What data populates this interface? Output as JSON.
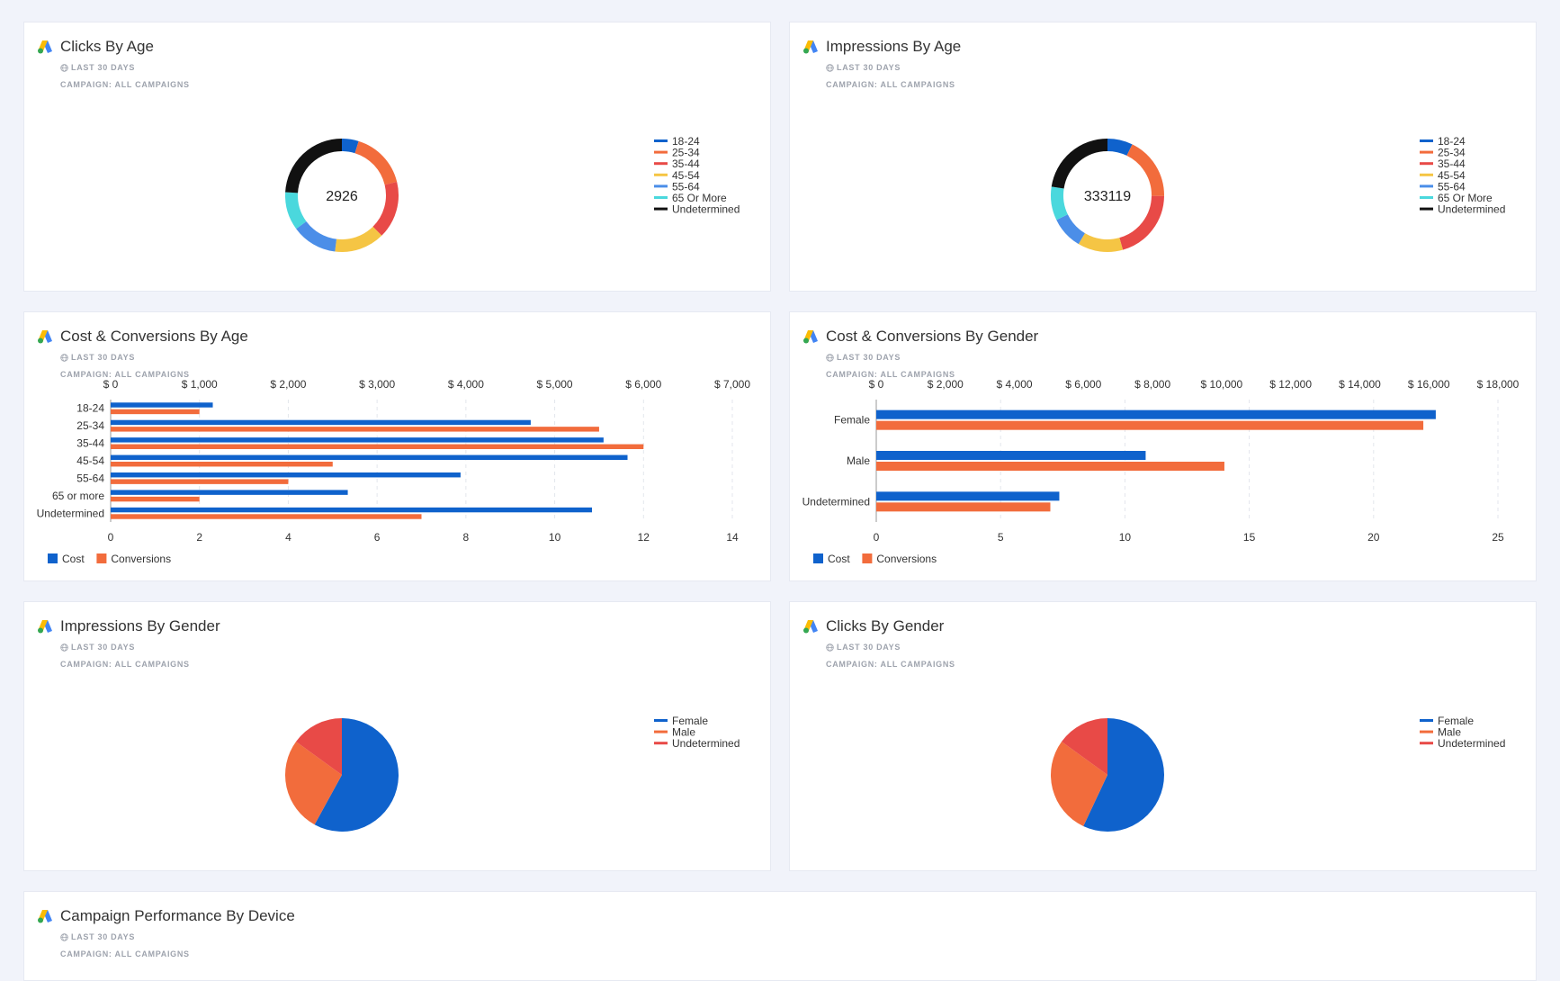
{
  "colors": {
    "blue": "#0f62cc",
    "orange": "#f26c3c",
    "red": "#e84a47",
    "yellow": "#f5c544",
    "light_blue": "#4b8ee8",
    "cyan": "#4ad8dd",
    "black": "#111111"
  },
  "cards": [
    {
      "title": "Clicks By Age",
      "range": "LAST 30 DAYS",
      "campaign": "CAMPAIGN: ALL CAMPAIGNS"
    },
    {
      "title": "Impressions By Age",
      "range": "LAST 30 DAYS",
      "campaign": "CAMPAIGN: ALL CAMPAIGNS"
    },
    {
      "title": "Cost & Conversions By Age",
      "range": "LAST 30 DAYS",
      "campaign": "CAMPAIGN: ALL CAMPAIGNS"
    },
    {
      "title": "Cost & Conversions By Gender",
      "range": "LAST 30 DAYS",
      "campaign": "CAMPAIGN: ALL CAMPAIGNS"
    },
    {
      "title": "Impressions By Gender",
      "range": "LAST 30 DAYS",
      "campaign": "CAMPAIGN: ALL CAMPAIGNS"
    },
    {
      "title": "Clicks By Gender",
      "range": "LAST 30 DAYS",
      "campaign": "CAMPAIGN: ALL CAMPAIGNS"
    },
    {
      "title": "Campaign Performance By Device",
      "range": "LAST 30 DAYS",
      "campaign": "CAMPAIGN: ALL CAMPAIGNS"
    }
  ],
  "chart_data": [
    {
      "id": "clicks-by-age",
      "type": "pie",
      "variant": "donut",
      "title": "Clicks By Age",
      "center_label": "2926",
      "categories": [
        "18-24",
        "25-34",
        "35-44",
        "45-54",
        "55-64",
        "65 Or More",
        "Undetermined"
      ],
      "values": [
        140,
        480,
        480,
        420,
        380,
        320,
        706
      ],
      "colors": [
        "#0f62cc",
        "#f26c3c",
        "#e84a47",
        "#f5c544",
        "#4b8ee8",
        "#4ad8dd",
        "#111111"
      ],
      "legend": "right"
    },
    {
      "id": "impressions-by-age",
      "type": "pie",
      "variant": "donut",
      "title": "Impressions By Age",
      "center_label": "333119",
      "categories": [
        "18-24",
        "25-34",
        "35-44",
        "45-54",
        "55-64",
        "65 Or More",
        "Undetermined"
      ],
      "values": [
        24000,
        60000,
        68000,
        43000,
        31000,
        32000,
        75119
      ],
      "colors": [
        "#0f62cc",
        "#f26c3c",
        "#e84a47",
        "#f5c544",
        "#4b8ee8",
        "#4ad8dd",
        "#111111"
      ],
      "legend": "right"
    },
    {
      "id": "cost-conversions-by-age",
      "type": "bar",
      "orientation": "horizontal",
      "title": "Cost & Conversions By Age",
      "categories": [
        "18-24",
        "25-34",
        "35-44",
        "45-54",
        "55-64",
        "65 or more",
        "Undetermined"
      ],
      "series": [
        {
          "name": "Cost",
          "axis": "top",
          "color": "#0f62cc",
          "values": [
            1150,
            4730,
            5550,
            5820,
            3940,
            2670,
            5420
          ]
        },
        {
          "name": "Conversions",
          "axis": "bottom",
          "color": "#f26c3c",
          "values": [
            2,
            11,
            12,
            5,
            4,
            2,
            7
          ]
        }
      ],
      "top_axis": {
        "range": [
          0,
          7000
        ],
        "ticks": [
          "$ 0",
          "$ 1,000",
          "$ 2,000",
          "$ 3,000",
          "$ 4,000",
          "$ 5,000",
          "$ 6,000",
          "$ 7,000"
        ]
      },
      "bottom_axis": {
        "range": [
          0,
          14
        ],
        "ticks": [
          "0",
          "2",
          "4",
          "6",
          "8",
          "10",
          "12",
          "14"
        ]
      },
      "legend": "bottom-left"
    },
    {
      "id": "cost-conversions-by-gender",
      "type": "bar",
      "orientation": "horizontal",
      "title": "Cost & Conversions By Gender",
      "categories": [
        "Female",
        "Male",
        "Undetermined"
      ],
      "series": [
        {
          "name": "Cost",
          "axis": "top",
          "color": "#0f62cc",
          "values": [
            16200,
            7800,
            5300
          ]
        },
        {
          "name": "Conversions",
          "axis": "bottom",
          "color": "#f26c3c",
          "values": [
            22,
            14,
            7
          ]
        }
      ],
      "top_axis": {
        "range": [
          0,
          18000
        ],
        "ticks": [
          "$ 0",
          "$ 2,000",
          "$ 4,000",
          "$ 6,000",
          "$ 8,000",
          "$ 10,000",
          "$ 12,000",
          "$ 14,000",
          "$ 16,000",
          "$ 18,000"
        ]
      },
      "bottom_axis": {
        "range": [
          0,
          25
        ],
        "ticks": [
          "0",
          "5",
          "10",
          "15",
          "20",
          "25"
        ]
      },
      "legend": "bottom-left"
    },
    {
      "id": "impressions-by-gender",
      "type": "pie",
      "title": "Impressions By Gender",
      "categories": [
        "Female",
        "Male",
        "Undetermined"
      ],
      "values": [
        58,
        27,
        15
      ],
      "colors": [
        "#0f62cc",
        "#f26c3c",
        "#e84a47"
      ],
      "legend": "right"
    },
    {
      "id": "clicks-by-gender",
      "type": "pie",
      "title": "Clicks By Gender",
      "categories": [
        "Female",
        "Male",
        "Undetermined"
      ],
      "values": [
        57,
        28,
        15
      ],
      "colors": [
        "#0f62cc",
        "#f26c3c",
        "#e84a47"
      ],
      "legend": "right"
    }
  ]
}
